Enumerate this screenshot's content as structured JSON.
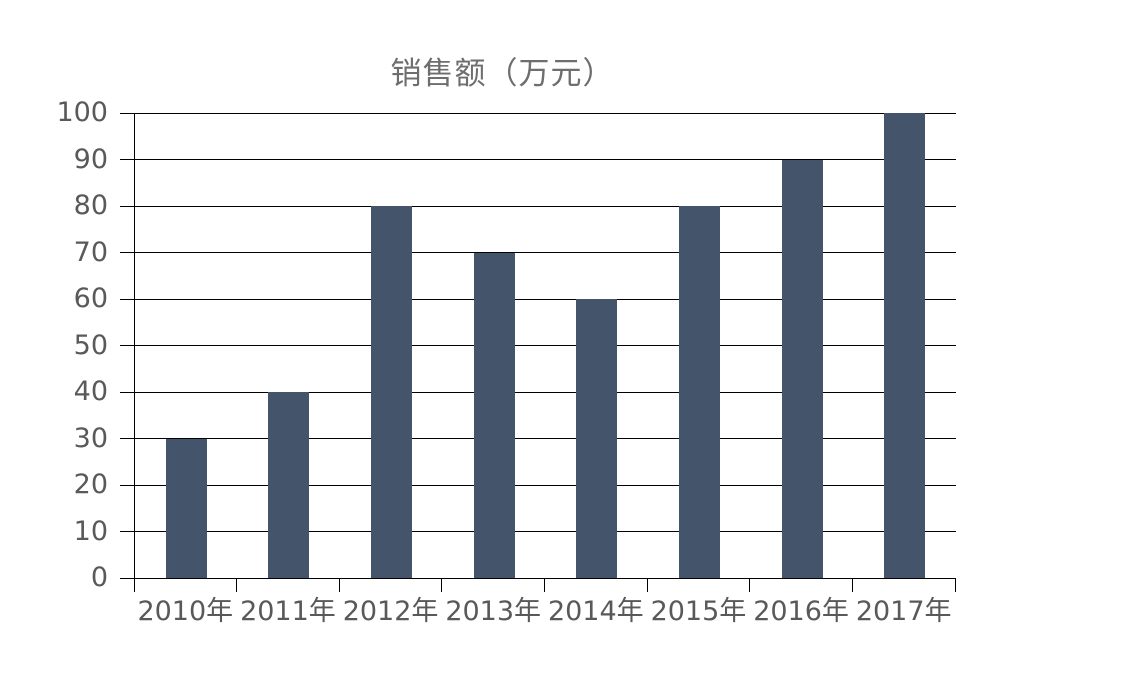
{
  "chart_data": {
    "type": "bar",
    "title": "销售额（万元）",
    "categories": [
      "2010年",
      "2011年",
      "2012年",
      "2013年",
      "2014年",
      "2015年",
      "2016年",
      "2017年"
    ],
    "values": [
      30,
      40,
      80,
      70,
      60,
      80,
      90,
      100
    ],
    "xlabel": "",
    "ylabel": "",
    "ylim": [
      0,
      100
    ],
    "yticks": [
      0,
      10,
      20,
      30,
      40,
      50,
      60,
      70,
      80,
      90,
      100
    ],
    "grid": "horizontal-major",
    "legend_position": "none",
    "colors": {
      "bar": "#44546A",
      "gridline": "#000000",
      "axis": "#000000",
      "tick_label": "#595959",
      "title": "#6E6E6E",
      "background": "#FFFFFF"
    }
  }
}
